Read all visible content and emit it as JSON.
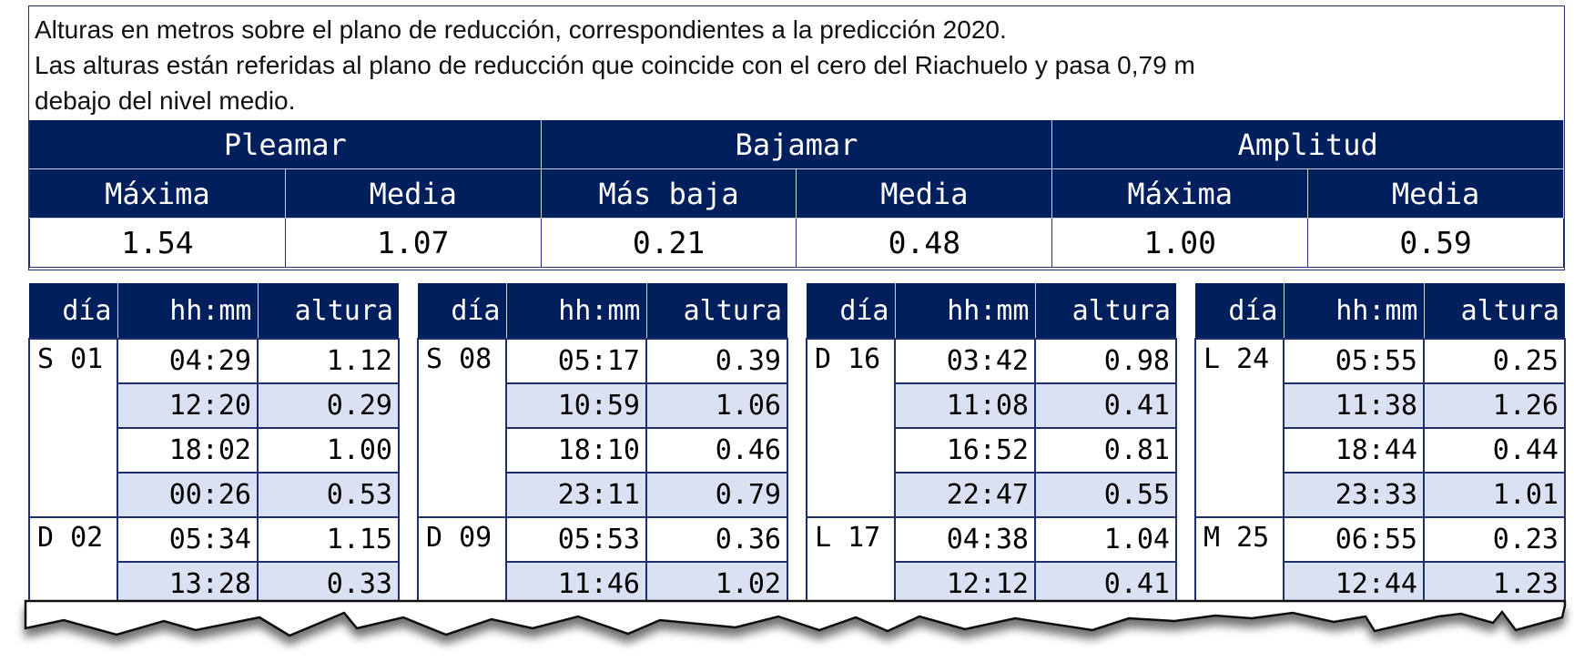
{
  "intro": {
    "line1": "Alturas en metros sobre el plano de reducción, correspondientes a la predicción 2020.",
    "line2": "Las alturas están referidas al plano de reducción que coincide con el cero del Riachuelo y pasa 0,79 m",
    "line3": "debajo del nivel medio."
  },
  "summary": {
    "groups": [
      "Pleamar",
      "Bajamar",
      "Amplitud"
    ],
    "subheaders": [
      "Máxima",
      "Media",
      "Más baja",
      "Media",
      "Máxima",
      "Media"
    ],
    "values": [
      "1.54",
      "1.07",
      "0.21",
      "0.48",
      "1.00",
      "0.59"
    ]
  },
  "columns": [
    "día",
    "hh:mm",
    "altura"
  ],
  "tables": [
    {
      "days": [
        {
          "day": "S 01",
          "rows": [
            [
              "04:29",
              "1.12"
            ],
            [
              "12:20",
              "0.29"
            ],
            [
              "18:02",
              "1.00"
            ],
            [
              "00:26",
              "0.53"
            ]
          ]
        },
        {
          "day": "D 02",
          "rows": [
            [
              "05:34",
              "1.15"
            ],
            [
              "13:28",
              "0.33"
            ]
          ]
        }
      ]
    },
    {
      "days": [
        {
          "day": "S 08",
          "rows": [
            [
              "05:17",
              "0.39"
            ],
            [
              "10:59",
              "1.06"
            ],
            [
              "18:10",
              "0.46"
            ],
            [
              "23:11",
              "0.79"
            ]
          ]
        },
        {
          "day": "D 09",
          "rows": [
            [
              "05:53",
              "0.36"
            ],
            [
              "11:46",
              "1.02"
            ]
          ]
        }
      ]
    },
    {
      "days": [
        {
          "day": "D 16",
          "rows": [
            [
              "03:42",
              "0.98"
            ],
            [
              "11:08",
              "0.41"
            ],
            [
              "16:52",
              "0.81"
            ],
            [
              "22:47",
              "0.55"
            ]
          ]
        },
        {
          "day": "L 17",
          "rows": [
            [
              "04:38",
              "1.04"
            ],
            [
              "12:12",
              "0.41"
            ]
          ]
        }
      ]
    },
    {
      "days": [
        {
          "day": "L 24",
          "rows": [
            [
              "05:55",
              "0.25"
            ],
            [
              "11:38",
              "1.26"
            ],
            [
              "18:44",
              "0.44"
            ],
            [
              "23:33",
              "1.01"
            ]
          ]
        },
        {
          "day": "M 25",
          "rows": [
            [
              "06:55",
              "0.23"
            ],
            [
              "12:44",
              "1.23"
            ]
          ]
        }
      ]
    }
  ],
  "colors": {
    "header": "#001f5c",
    "stripe": "#d9e1f2",
    "border": "#1f2f6e"
  }
}
